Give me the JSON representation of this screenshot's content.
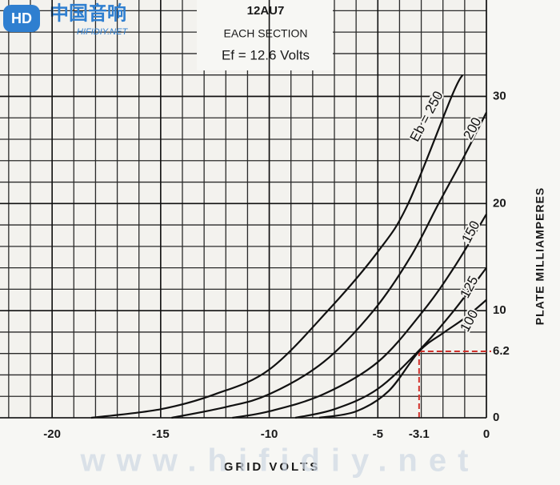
{
  "chart_data": {
    "type": "line",
    "title": "12AU7",
    "subtitle": "EACH SECTION",
    "annotation": "Ef = 12.6 Volts",
    "xlabel": "GRID VOLTS",
    "ylabel": "PLATE MILLIAMPERES",
    "logo": {
      "name": "中国音响",
      "site": "HIFIDIY.NET"
    },
    "watermark": "www.hifidiy.net",
    "xlim": [
      -22.4,
      0
    ],
    "ylim": [
      0,
      39
    ],
    "xticks": [
      -20,
      -15,
      -10,
      -5,
      -3.1,
      0
    ],
    "yticks": [
      0,
      6.2,
      10,
      20,
      30
    ],
    "grid": true,
    "guide_color": "#d0302a",
    "series": [
      {
        "name": "Eb = 250",
        "color": "#111111",
        "x": [
          -18.2,
          -15,
          -12.5,
          -10,
          -7.3,
          -5,
          -3.6,
          -1.6,
          -1.1
        ],
        "values": [
          0,
          0.8,
          2.2,
          4.5,
          10,
          15.5,
          20,
          30,
          32
        ]
      },
      {
        "name": "200",
        "color": "#111111",
        "x": [
          -14.5,
          -12,
          -10,
          -7.5,
          -5.2,
          -3.5,
          -2.2,
          -1,
          0
        ],
        "values": [
          0,
          1,
          2.2,
          5.2,
          10,
          15,
          20,
          24.5,
          28.5
        ]
      },
      {
        "name": "150",
        "color": "#111111",
        "x": [
          -11.7,
          -10,
          -7.5,
          -5,
          -2.9,
          -1.5,
          0
        ],
        "values": [
          0,
          0.6,
          2.2,
          5.2,
          10,
          14,
          19
        ]
      },
      {
        "name": "125",
        "color": "#111111",
        "x": [
          -8.8,
          -7,
          -5,
          -3,
          -1.5,
          0
        ],
        "values": [
          0,
          0.8,
          2.7,
          6.5,
          10,
          14
        ]
      },
      {
        "name": "100",
        "color": "#111111",
        "x": [
          -7.7,
          -6,
          -4.5,
          -3.1,
          -2,
          -1,
          0
        ],
        "values": [
          0,
          0.6,
          2.5,
          6.2,
          7.9,
          9.3,
          11
        ]
      }
    ]
  }
}
